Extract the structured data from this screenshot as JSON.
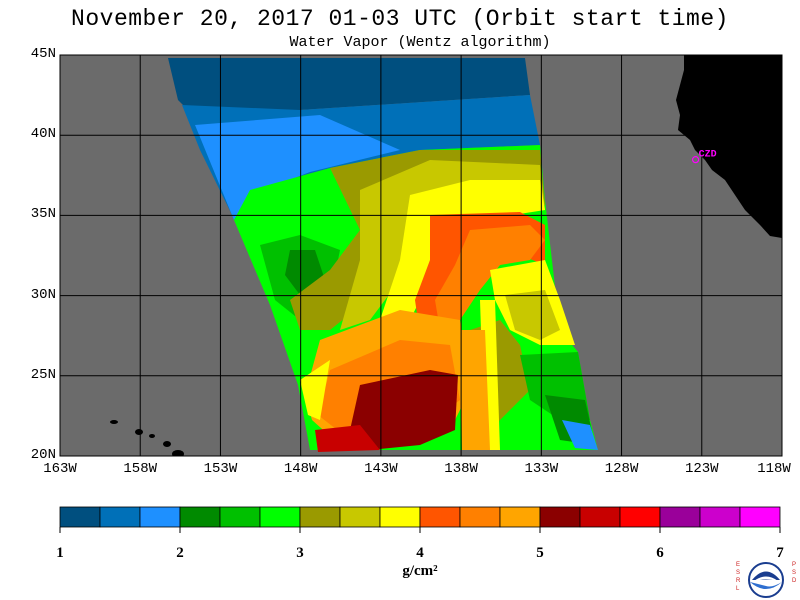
{
  "title": "November 20, 2017  01-03 UTC  (Orbit start time)",
  "subtitle": "Water Vapor (Wentz algorithm)",
  "map": {
    "lat_labels": [
      "45N",
      "40N",
      "35N",
      "30N",
      "25N",
      "20N"
    ],
    "lon_labels": [
      "163W",
      "158W",
      "153W",
      "148W",
      "143W",
      "138W",
      "133W",
      "128W",
      "123W",
      "118W"
    ],
    "lat_range": [
      20,
      45
    ],
    "lon_range": [
      -163,
      -118
    ],
    "station_label": "CZD",
    "station_lat": 38.6,
    "station_lon": -123.2,
    "ocean_color": "#6b6b6b",
    "land_color": "#000000",
    "station_color": "#ff00ff"
  },
  "colorbar": {
    "ticks": [
      "1",
      "2",
      "3",
      "4",
      "5",
      "6",
      "7"
    ],
    "min": 1,
    "max": 7,
    "colors": [
      "#004f7f",
      "#0070b8",
      "#1e90ff",
      "#008a00",
      "#00c000",
      "#00ff00",
      "#9a9a00",
      "#c8c800",
      "#ffff00",
      "#ff5500",
      "#ff8000",
      "#ffa500",
      "#8b0000",
      "#c80000",
      "#ff0000",
      "#9a009a",
      "#cc00cc",
      "#ff00ff"
    ],
    "units": "g/cm²"
  },
  "logo": {
    "left_text": "ESRL",
    "right_text": "PSD",
    "name": "noaa-logo"
  }
}
